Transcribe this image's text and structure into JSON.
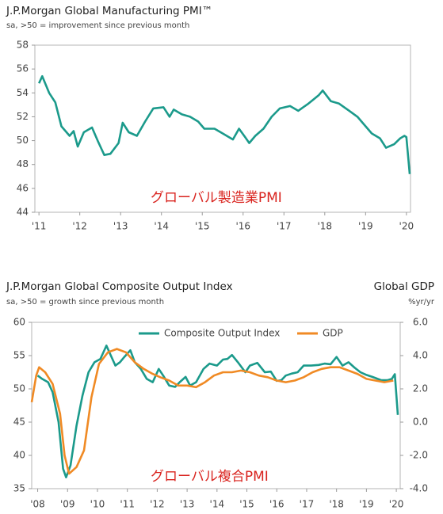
{
  "chart_data": [
    {
      "type": "line",
      "title": "J.P.Morgan Global Manufacturing PMI™",
      "subtitle": "sa, >50 = improvement since previous month",
      "annotation": "グローバル製造業PMI",
      "color": "#1b9a8b",
      "x": [
        2011.0,
        2011.08,
        2011.25,
        2011.4,
        2011.55,
        2011.75,
        2011.85,
        2011.95,
        2012.1,
        2012.3,
        2012.45,
        2012.6,
        2012.75,
        2012.95,
        2013.05,
        2013.2,
        2013.4,
        2013.6,
        2013.8,
        2014.05,
        2014.2,
        2014.3,
        2014.5,
        2014.7,
        2014.9,
        2015.05,
        2015.3,
        2015.5,
        2015.75,
        2015.9,
        2016.05,
        2016.15,
        2016.3,
        2016.5,
        2016.7,
        2016.9,
        2017.15,
        2017.35,
        2017.6,
        2017.85,
        2017.95,
        2018.15,
        2018.35,
        2018.6,
        2018.8,
        2018.95,
        2019.15,
        2019.35,
        2019.5,
        2019.7,
        2019.85,
        2019.95,
        2020.0,
        2020.08
      ],
      "values": [
        54.8,
        55.4,
        54.0,
        53.2,
        51.2,
        50.4,
        50.8,
        49.5,
        50.7,
        51.1,
        49.9,
        48.8,
        48.9,
        49.8,
        51.5,
        50.7,
        50.4,
        51.6,
        52.7,
        52.8,
        52.0,
        52.6,
        52.2,
        52.0,
        51.6,
        51.0,
        51.0,
        50.6,
        50.1,
        51.0,
        50.3,
        49.8,
        50.4,
        51.0,
        52.0,
        52.7,
        52.9,
        52.5,
        53.1,
        53.8,
        54.2,
        53.3,
        53.1,
        52.5,
        52.0,
        51.4,
        50.6,
        50.2,
        49.4,
        49.7,
        50.2,
        50.4,
        50.3,
        47.2
      ],
      "xlim": [
        2010.9,
        2020.1
      ],
      "xticks": [
        {
          "value": 2011,
          "label": "'11"
        },
        {
          "value": 2012,
          "label": "'12"
        },
        {
          "value": 2013,
          "label": "'13"
        },
        {
          "value": 2014,
          "label": "'14"
        },
        {
          "value": 2015,
          "label": "'15"
        },
        {
          "value": 2016,
          "label": "'16"
        },
        {
          "value": 2017,
          "label": "'17"
        },
        {
          "value": 2018,
          "label": "'18"
        },
        {
          "value": 2019,
          "label": "'19"
        },
        {
          "value": 2020,
          "label": "'20"
        }
      ],
      "ylim": [
        44,
        58
      ],
      "yticks": [
        44,
        46,
        48,
        50,
        52,
        54,
        56,
        58
      ]
    },
    {
      "type": "line",
      "title": "J.P.Morgan Global Composite Output Index",
      "subtitle": "sa, >50 = growth since previous month",
      "y2_title": "Global GDP",
      "y2_subtitle": "%yr/yr",
      "annotation": "グローバル複合PMI",
      "legend": "top",
      "series": [
        {
          "name": "Composite Output Index",
          "color": "#1b9a8b",
          "x": [
            2008.0,
            2008.15,
            2008.35,
            2008.5,
            2008.7,
            2008.85,
            2008.95,
            2009.1,
            2009.3,
            2009.5,
            2009.7,
            2009.9,
            2010.1,
            2010.3,
            2010.45,
            2010.6,
            2010.75,
            2010.9,
            2011.1,
            2011.25,
            2011.45,
            2011.65,
            2011.85,
            2012.05,
            2012.2,
            2012.4,
            2012.6,
            2012.75,
            2012.95,
            2013.1,
            2013.3,
            2013.55,
            2013.75,
            2014.0,
            2014.2,
            2014.35,
            2014.5,
            2014.7,
            2014.95,
            2015.1,
            2015.35,
            2015.6,
            2015.8,
            2016.0,
            2016.15,
            2016.3,
            2016.5,
            2016.7,
            2016.9,
            2017.15,
            2017.4,
            2017.6,
            2017.8,
            2018.0,
            2018.2,
            2018.4,
            2018.6,
            2018.8,
            2019.0,
            2019.2,
            2019.5,
            2019.7,
            2019.85,
            2019.95,
            2020.05
          ],
          "values": [
            52,
            51.5,
            51,
            49.5,
            45,
            38,
            36.7,
            38.5,
            44.5,
            49,
            52.5,
            54,
            54.5,
            56.5,
            55,
            53.5,
            54,
            54.8,
            55.8,
            54,
            53,
            51.5,
            51,
            53,
            52,
            50.5,
            50.3,
            51,
            51.8,
            50.5,
            51,
            53,
            53.8,
            53.5,
            54.4,
            54.5,
            55.1,
            54,
            52.5,
            53.5,
            53.9,
            52.5,
            52.6,
            51.2,
            51.3,
            52,
            52.3,
            52.5,
            53.5,
            53.5,
            53.6,
            53.8,
            53.7,
            54.8,
            53.5,
            54,
            53.2,
            52.5,
            52.1,
            51.8,
            51.3,
            51.3,
            51.5,
            52.2,
            46.1
          ]
        },
        {
          "name": "GDP",
          "color": "#f08a24",
          "axis": "y2",
          "x": [
            2007.8,
            2007.95,
            2008.05,
            2008.25,
            2008.5,
            2008.75,
            2008.9,
            2009.05,
            2009.3,
            2009.55,
            2009.8,
            2010.05,
            2010.35,
            2010.65,
            2010.95,
            2011.25,
            2011.55,
            2011.85,
            2012.1,
            2012.4,
            2012.7,
            2013.0,
            2013.3,
            2013.6,
            2013.9,
            2014.2,
            2014.5,
            2014.8,
            2015.1,
            2015.4,
            2015.7,
            2016.0,
            2016.3,
            2016.6,
            2016.9,
            2017.2,
            2017.5,
            2017.8,
            2018.1,
            2018.4,
            2018.7,
            2019.0,
            2019.3,
            2019.6,
            2019.9
          ],
          "values": [
            1.2,
            2.8,
            3.3,
            3.0,
            2.3,
            0.5,
            -2.0,
            -3.1,
            -2.7,
            -1.7,
            1.5,
            3.5,
            4.2,
            4.4,
            4.2,
            3.6,
            3.2,
            2.9,
            2.7,
            2.5,
            2.2,
            2.2,
            2.1,
            2.4,
            2.8,
            3.0,
            3.0,
            3.1,
            3.0,
            2.8,
            2.7,
            2.5,
            2.4,
            2.5,
            2.7,
            3.0,
            3.2,
            3.3,
            3.3,
            3.1,
            2.9,
            2.6,
            2.5,
            2.4,
            2.5
          ]
        }
      ],
      "xlim": [
        2007.8,
        2020.13
      ],
      "xticks": [
        {
          "value": 2008,
          "label": "'08"
        },
        {
          "value": 2009,
          "label": "'09"
        },
        {
          "value": 2010,
          "label": "'10"
        },
        {
          "value": 2011,
          "label": "'11"
        },
        {
          "value": 2012,
          "label": "'12"
        },
        {
          "value": 2013,
          "label": "'13"
        },
        {
          "value": 2014,
          "label": "'14"
        },
        {
          "value": 2015,
          "label": "'15"
        },
        {
          "value": 2016,
          "label": "'16"
        },
        {
          "value": 2017,
          "label": "'17"
        },
        {
          "value": 2018,
          "label": "'18"
        },
        {
          "value": 2019,
          "label": "'19"
        },
        {
          "value": 2020,
          "label": "'20"
        }
      ],
      "ylim": [
        35,
        60
      ],
      "yticks": [
        35,
        40,
        45,
        50,
        55,
        60
      ],
      "y2lim": [
        -4,
        6
      ],
      "y2ticks": [
        {
          "value": -4,
          "label": "-4.0"
        },
        {
          "value": -2,
          "label": "-2.0"
        },
        {
          "value": 0,
          "label": "0.0"
        },
        {
          "value": 2,
          "label": "2.0"
        },
        {
          "value": 4,
          "label": "4.0"
        },
        {
          "value": 6,
          "label": "6.0"
        }
      ]
    }
  ]
}
